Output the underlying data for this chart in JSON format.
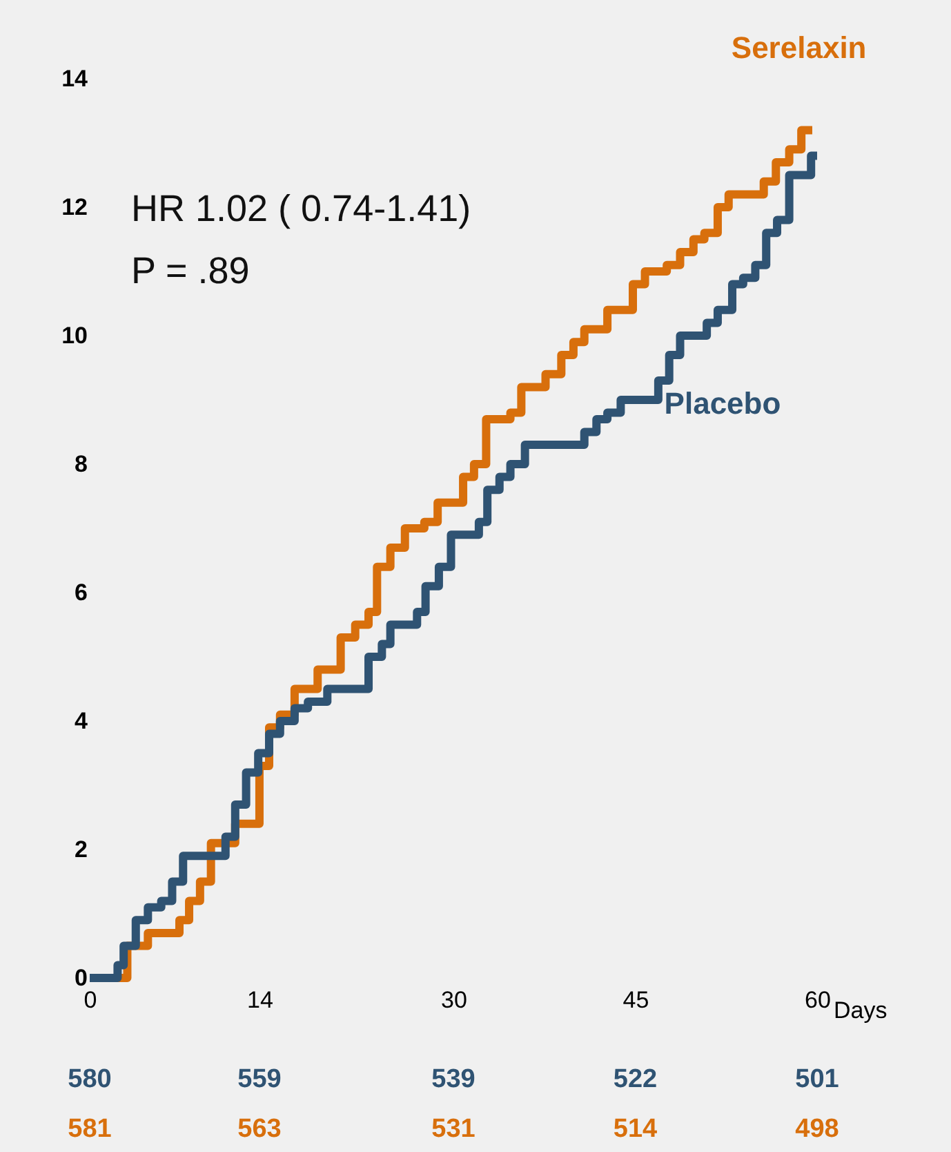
{
  "chart_data": {
    "type": "step",
    "xlabel": "Days",
    "xlim": [
      0,
      60
    ],
    "xticks": [
      0,
      14,
      30,
      45,
      60
    ],
    "ylim": [
      0,
      14
    ],
    "yticks": [
      0,
      2,
      4,
      6,
      8,
      10,
      12,
      14
    ],
    "grid": false,
    "marker": "none",
    "line_style": "solid",
    "annotations": [
      "HR 1.02 ( 0.74-1.41)",
      "P = .89",
      "580",
      "559",
      "539",
      "522",
      "501",
      "581",
      "563",
      "531",
      "514",
      "498"
    ],
    "series": [
      {
        "name": "Serelaxin",
        "color": "#d86f0c",
        "x": [
          0,
          3.1,
          4.8,
          7.4,
          8.2,
          9.1,
          10,
          12,
          14,
          14.8,
          15.7,
          16.9,
          18.8,
          20.7,
          21.9,
          23,
          23.7,
          24.8,
          26,
          27.6,
          28.7,
          30.8,
          31.7,
          32.7,
          34.7,
          35.6,
          37.6,
          38.9,
          39.9,
          40.8,
          42.7,
          44.8,
          45.8,
          47.6,
          48.7,
          49.8,
          50.7,
          51.8,
          52.7,
          55.6,
          56.6,
          57.7,
          58.7,
          59.6
        ],
        "values": [
          0,
          0.5,
          0.7,
          0.9,
          1.2,
          1.5,
          2.1,
          2.4,
          3.3,
          3.9,
          4.1,
          4.5,
          4.8,
          5.3,
          5.5,
          5.7,
          6.4,
          6.7,
          7.0,
          7.1,
          7.4,
          7.8,
          8.0,
          8.7,
          8.8,
          9.2,
          9.4,
          9.7,
          9.9,
          10.1,
          10.4,
          10.8,
          11.0,
          11.1,
          11.3,
          11.5,
          11.6,
          12.0,
          12.2,
          12.4,
          12.7,
          12.9,
          13.2,
          13.2
        ]
      },
      {
        "name": "Placebo",
        "color": "#2f5373",
        "x": [
          0,
          2.3,
          2.8,
          3.8,
          4.8,
          5.9,
          6.8,
          7.7,
          11.2,
          12,
          12.9,
          13.9,
          14.8,
          15.7,
          16.9,
          18,
          19.6,
          23,
          24.1,
          24.8,
          27,
          27.7,
          28.8,
          29.8,
          32.1,
          32.8,
          33.8,
          34.7,
          35.9,
          40.8,
          41.8,
          42.7,
          43.8,
          46.9,
          47.8,
          48.7,
          50.9,
          51.8,
          53,
          53.9,
          54.9,
          55.8,
          56.7,
          57.7,
          59.5,
          60
        ],
        "values": [
          0,
          0.2,
          0.5,
          0.9,
          1.1,
          1.2,
          1.5,
          1.9,
          2.2,
          2.7,
          3.2,
          3.5,
          3.8,
          4.0,
          4.2,
          4.3,
          4.5,
          5.0,
          5.2,
          5.5,
          5.7,
          6.1,
          6.4,
          6.9,
          7.1,
          7.6,
          7.8,
          8.0,
          8.3,
          8.5,
          8.7,
          8.8,
          9.0,
          9.3,
          9.7,
          10.0,
          10.2,
          10.4,
          10.8,
          10.9,
          11.1,
          11.6,
          11.8,
          12.5,
          12.8,
          12.8
        ]
      }
    ]
  }
}
